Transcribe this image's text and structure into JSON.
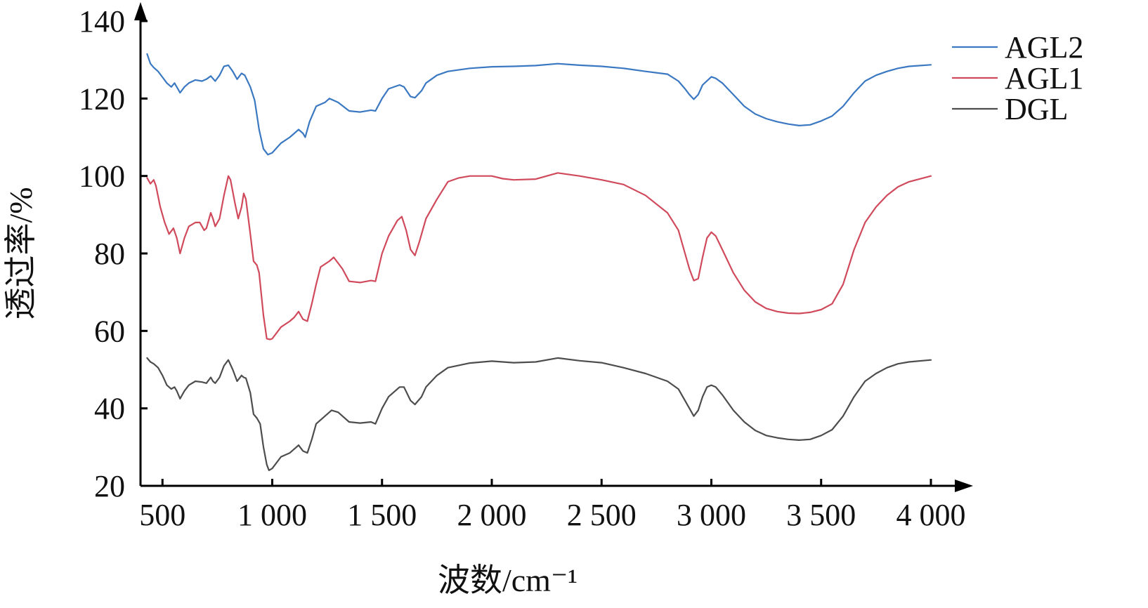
{
  "chart_data": {
    "type": "line",
    "xlabel": "波数/cm⁻¹",
    "ylabel": "透过率/%",
    "xlim": [
      400,
      4000
    ],
    "ylim": [
      20,
      140
    ],
    "x_ticks": [
      500,
      1000,
      1500,
      2000,
      2500,
      3000,
      3500,
      4000
    ],
    "x_tick_labels": [
      "500",
      "1 000",
      "1 500",
      "2 000",
      "2 500",
      "3 000",
      "3 500",
      "4 000"
    ],
    "y_ticks": [
      20,
      40,
      60,
      80,
      100,
      120,
      140
    ],
    "y_tick_labels": [
      "20",
      "40",
      "60",
      "80",
      "100",
      "120",
      "140"
    ],
    "legend_position": "top-right",
    "grid": false,
    "series": [
      {
        "name": "AGL2",
        "color": "#3b78c2",
        "points": [
          [
            430,
            131.5
          ],
          [
            445,
            129
          ],
          [
            460,
            128
          ],
          [
            480,
            127
          ],
          [
            500,
            125.5
          ],
          [
            520,
            124
          ],
          [
            540,
            123
          ],
          [
            555,
            124
          ],
          [
            565,
            123
          ],
          [
            580,
            121.5
          ],
          [
            600,
            123
          ],
          [
            620,
            124
          ],
          [
            650,
            124.8
          ],
          [
            680,
            124.5
          ],
          [
            700,
            125
          ],
          [
            720,
            125.8
          ],
          [
            740,
            124.5
          ],
          [
            760,
            126
          ],
          [
            780,
            128.3
          ],
          [
            800,
            128.6
          ],
          [
            820,
            127
          ],
          [
            840,
            125
          ],
          [
            860,
            126.5
          ],
          [
            875,
            126
          ],
          [
            900,
            123
          ],
          [
            920,
            119.5
          ],
          [
            940,
            112
          ],
          [
            960,
            107
          ],
          [
            980,
            105.5
          ],
          [
            1000,
            106
          ],
          [
            1040,
            108.5
          ],
          [
            1080,
            110
          ],
          [
            1100,
            111
          ],
          [
            1120,
            112
          ],
          [
            1140,
            111
          ],
          [
            1150,
            110
          ],
          [
            1170,
            114
          ],
          [
            1200,
            118
          ],
          [
            1240,
            119
          ],
          [
            1260,
            120
          ],
          [
            1300,
            119
          ],
          [
            1350,
            116.8
          ],
          [
            1400,
            116.5
          ],
          [
            1450,
            117
          ],
          [
            1470,
            116.8
          ],
          [
            1500,
            120
          ],
          [
            1530,
            122.5
          ],
          [
            1580,
            123.5
          ],
          [
            1600,
            123
          ],
          [
            1630,
            120.5
          ],
          [
            1650,
            120.2
          ],
          [
            1680,
            122
          ],
          [
            1700,
            124
          ],
          [
            1750,
            126
          ],
          [
            1800,
            127
          ],
          [
            1900,
            127.8
          ],
          [
            2000,
            128.2
          ],
          [
            2100,
            128.3
          ],
          [
            2200,
            128.5
          ],
          [
            2300,
            129
          ],
          [
            2400,
            128.6
          ],
          [
            2500,
            128.3
          ],
          [
            2600,
            127.8
          ],
          [
            2700,
            127
          ],
          [
            2800,
            126.3
          ],
          [
            2850,
            124.5
          ],
          [
            2880,
            122.5
          ],
          [
            2900,
            121
          ],
          [
            2920,
            119.8
          ],
          [
            2940,
            121
          ],
          [
            2960,
            123.5
          ],
          [
            3000,
            125.6
          ],
          [
            3020,
            125.2
          ],
          [
            3050,
            124
          ],
          [
            3100,
            121
          ],
          [
            3150,
            118
          ],
          [
            3200,
            116
          ],
          [
            3250,
            114.8
          ],
          [
            3300,
            114
          ],
          [
            3350,
            113.4
          ],
          [
            3400,
            113
          ],
          [
            3450,
            113.2
          ],
          [
            3500,
            114.2
          ],
          [
            3550,
            115.5
          ],
          [
            3600,
            118
          ],
          [
            3650,
            121.5
          ],
          [
            3700,
            124.5
          ],
          [
            3750,
            126
          ],
          [
            3800,
            127
          ],
          [
            3850,
            127.8
          ],
          [
            3900,
            128.3
          ],
          [
            4000,
            128.7
          ]
        ]
      },
      {
        "name": "AGL1",
        "color": "#d04a5c",
        "points": [
          [
            430,
            99.5
          ],
          [
            445,
            98
          ],
          [
            460,
            99
          ],
          [
            470,
            97.5
          ],
          [
            490,
            92
          ],
          [
            510,
            88
          ],
          [
            530,
            85
          ],
          [
            550,
            86.5
          ],
          [
            565,
            84
          ],
          [
            580,
            80
          ],
          [
            600,
            84
          ],
          [
            620,
            87
          ],
          [
            650,
            88
          ],
          [
            670,
            88
          ],
          [
            690,
            86
          ],
          [
            700,
            86.5
          ],
          [
            720,
            90.5
          ],
          [
            730,
            89
          ],
          [
            740,
            87
          ],
          [
            760,
            89
          ],
          [
            780,
            95
          ],
          [
            800,
            100
          ],
          [
            810,
            99
          ],
          [
            830,
            93
          ],
          [
            845,
            89
          ],
          [
            860,
            92
          ],
          [
            870,
            95.5
          ],
          [
            880,
            94
          ],
          [
            900,
            85
          ],
          [
            915,
            78
          ],
          [
            930,
            77
          ],
          [
            940,
            75
          ],
          [
            960,
            64
          ],
          [
            975,
            58
          ],
          [
            990,
            57.8
          ],
          [
            1000,
            58
          ],
          [
            1040,
            61
          ],
          [
            1080,
            62.5
          ],
          [
            1100,
            63.5
          ],
          [
            1120,
            65
          ],
          [
            1140,
            63
          ],
          [
            1160,
            62.5
          ],
          [
            1180,
            67
          ],
          [
            1200,
            72
          ],
          [
            1220,
            76.5
          ],
          [
            1260,
            78
          ],
          [
            1280,
            79
          ],
          [
            1320,
            76
          ],
          [
            1350,
            72.8
          ],
          [
            1400,
            72.5
          ],
          [
            1450,
            73
          ],
          [
            1470,
            72.8
          ],
          [
            1500,
            80
          ],
          [
            1530,
            84.5
          ],
          [
            1570,
            88.5
          ],
          [
            1590,
            89.5
          ],
          [
            1610,
            86
          ],
          [
            1630,
            81
          ],
          [
            1650,
            79.5
          ],
          [
            1670,
            83
          ],
          [
            1700,
            89
          ],
          [
            1750,
            94
          ],
          [
            1800,
            98.5
          ],
          [
            1850,
            99.5
          ],
          [
            1900,
            100
          ],
          [
            2000,
            100
          ],
          [
            2050,
            99.3
          ],
          [
            2100,
            99
          ],
          [
            2200,
            99.2
          ],
          [
            2300,
            100.8
          ],
          [
            2400,
            100
          ],
          [
            2500,
            99
          ],
          [
            2600,
            97.8
          ],
          [
            2700,
            95
          ],
          [
            2800,
            90.5
          ],
          [
            2850,
            86
          ],
          [
            2880,
            80
          ],
          [
            2900,
            76
          ],
          [
            2920,
            73
          ],
          [
            2940,
            73.5
          ],
          [
            2960,
            79
          ],
          [
            2980,
            84
          ],
          [
            3000,
            85.5
          ],
          [
            3020,
            84.5
          ],
          [
            3050,
            81
          ],
          [
            3100,
            75
          ],
          [
            3150,
            70.5
          ],
          [
            3200,
            67.5
          ],
          [
            3250,
            65.8
          ],
          [
            3300,
            65
          ],
          [
            3350,
            64.6
          ],
          [
            3400,
            64.5
          ],
          [
            3450,
            64.8
          ],
          [
            3500,
            65.5
          ],
          [
            3550,
            67
          ],
          [
            3600,
            72
          ],
          [
            3650,
            81
          ],
          [
            3700,
            88
          ],
          [
            3750,
            92
          ],
          [
            3800,
            95
          ],
          [
            3850,
            97.2
          ],
          [
            3900,
            98.5
          ],
          [
            4000,
            100
          ]
        ]
      },
      {
        "name": "DGL",
        "color": "#4d4d4d",
        "points": [
          [
            430,
            53
          ],
          [
            445,
            52
          ],
          [
            460,
            51.5
          ],
          [
            480,
            50.5
          ],
          [
            500,
            48.5
          ],
          [
            520,
            46
          ],
          [
            540,
            45
          ],
          [
            555,
            45.5
          ],
          [
            565,
            44.5
          ],
          [
            580,
            42.5
          ],
          [
            600,
            44.5
          ],
          [
            620,
            46
          ],
          [
            650,
            47
          ],
          [
            680,
            46.8
          ],
          [
            700,
            46.5
          ],
          [
            720,
            48
          ],
          [
            730,
            47
          ],
          [
            740,
            46.5
          ],
          [
            760,
            48
          ],
          [
            780,
            51
          ],
          [
            800,
            52.5
          ],
          [
            820,
            50
          ],
          [
            840,
            47
          ],
          [
            860,
            48.5
          ],
          [
            870,
            48
          ],
          [
            880,
            47.8
          ],
          [
            900,
            44
          ],
          [
            915,
            38.5
          ],
          [
            930,
            37.5
          ],
          [
            945,
            36
          ],
          [
            960,
            30
          ],
          [
            975,
            25.5
          ],
          [
            985,
            24
          ],
          [
            1000,
            24.5
          ],
          [
            1040,
            27.5
          ],
          [
            1080,
            28.5
          ],
          [
            1100,
            29.5
          ],
          [
            1120,
            30.5
          ],
          [
            1140,
            29
          ],
          [
            1160,
            28.5
          ],
          [
            1180,
            32
          ],
          [
            1200,
            36
          ],
          [
            1240,
            38
          ],
          [
            1270,
            39.5
          ],
          [
            1300,
            39
          ],
          [
            1350,
            36.5
          ],
          [
            1400,
            36.2
          ],
          [
            1450,
            36.5
          ],
          [
            1470,
            36
          ],
          [
            1500,
            40
          ],
          [
            1530,
            43
          ],
          [
            1580,
            45.5
          ],
          [
            1600,
            45.5
          ],
          [
            1630,
            42
          ],
          [
            1650,
            41
          ],
          [
            1680,
            43
          ],
          [
            1700,
            45.5
          ],
          [
            1750,
            48.5
          ],
          [
            1800,
            50.5
          ],
          [
            1900,
            51.7
          ],
          [
            2000,
            52.2
          ],
          [
            2100,
            51.8
          ],
          [
            2200,
            52
          ],
          [
            2300,
            53
          ],
          [
            2400,
            52.3
          ],
          [
            2500,
            51.8
          ],
          [
            2600,
            50.5
          ],
          [
            2700,
            49
          ],
          [
            2800,
            47
          ],
          [
            2850,
            45
          ],
          [
            2880,
            42
          ],
          [
            2900,
            40
          ],
          [
            2920,
            38
          ],
          [
            2940,
            39.5
          ],
          [
            2960,
            43
          ],
          [
            2980,
            45.5
          ],
          [
            3000,
            46
          ],
          [
            3020,
            45.5
          ],
          [
            3050,
            43.5
          ],
          [
            3100,
            39.5
          ],
          [
            3150,
            36.5
          ],
          [
            3200,
            34.3
          ],
          [
            3250,
            33
          ],
          [
            3300,
            32.4
          ],
          [
            3350,
            32
          ],
          [
            3400,
            31.8
          ],
          [
            3450,
            32
          ],
          [
            3500,
            33
          ],
          [
            3550,
            34.5
          ],
          [
            3600,
            38
          ],
          [
            3650,
            43
          ],
          [
            3700,
            47
          ],
          [
            3750,
            49
          ],
          [
            3800,
            50.5
          ],
          [
            3850,
            51.5
          ],
          [
            3900,
            52
          ],
          [
            4000,
            52.5
          ]
        ]
      }
    ]
  }
}
